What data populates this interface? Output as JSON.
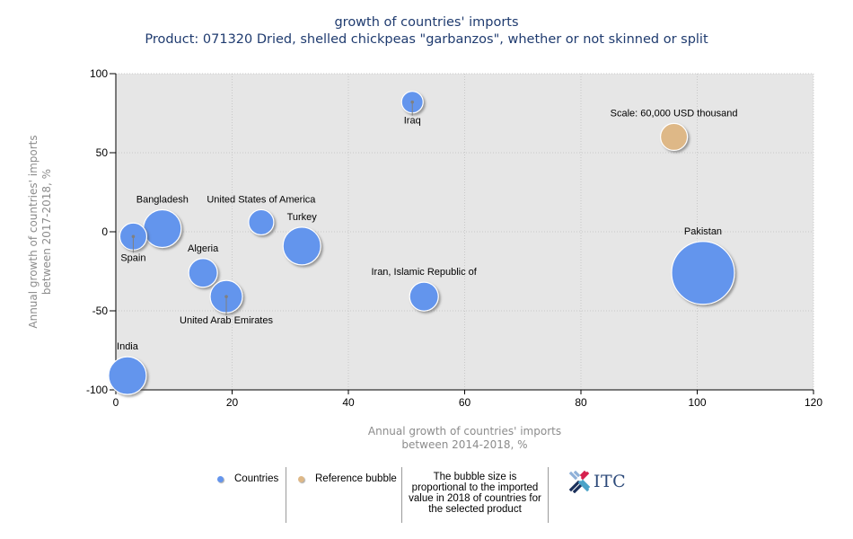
{
  "title": {
    "line1": "growth of countries' imports",
    "line2": "Product: 071320 Dried, shelled chickpeas \"garbanzos\", whether or not skinned or split"
  },
  "chart_data": {
    "type": "scatter",
    "subtype": "bubble",
    "title": "growth of countries' imports",
    "subtitle": "Product: 071320 Dried, shelled chickpeas \"garbanzos\", whether or not skinned or split",
    "xlabel": "Annual growth of countries' imports between 2014-2018, %",
    "xlabel_lines": [
      "Annual growth of countries' imports",
      "between 2014-2018, %"
    ],
    "ylabel": "Annual growth of countries' imports between 2017-2018, %",
    "ylabel_lines": [
      "Annual growth of countries' imports",
      "between 2017-2018, %"
    ],
    "xlim": [
      0,
      120
    ],
    "ylim": [
      -100,
      100
    ],
    "xticks": [
      0,
      20,
      40,
      60,
      80,
      100,
      120
    ],
    "yticks": [
      100,
      50,
      0,
      -50,
      -100
    ],
    "grid": true,
    "size_unit": "USD thousand (imported value 2018, estimated from bubble area)",
    "series": [
      {
        "name": "Countries",
        "color": "#6495ed",
        "points": [
          {
            "label": "Iraq",
            "x": 51,
            "y": 82,
            "size": 38400,
            "label_pos": "below",
            "leader": true
          },
          {
            "label": "Bangladesh",
            "x": 8,
            "y": 2,
            "size": 117600,
            "label_pos": "above",
            "leader": false
          },
          {
            "label": "Spain",
            "x": 3,
            "y": -3,
            "size": 60000,
            "label_pos": "below",
            "leader": true
          },
          {
            "label": "United States of America",
            "x": 25,
            "y": 6,
            "size": 52300,
            "label_pos": "above",
            "leader": false
          },
          {
            "label": "Turkey",
            "x": 32,
            "y": -9,
            "size": 117600,
            "label_pos": "above",
            "leader": false
          },
          {
            "label": "Algeria",
            "x": 15,
            "y": -26,
            "size": 68300,
            "label_pos": "above",
            "leader": false
          },
          {
            "label": "United Arab Emirates",
            "x": 19,
            "y": -41,
            "size": 86400,
            "label_pos": "below",
            "leader": true
          },
          {
            "label": "Iran, Islamic Republic of",
            "x": 53,
            "y": -41,
            "size": 68300,
            "label_pos": "above",
            "leader": false
          },
          {
            "label": "Pakistan",
            "x": 101,
            "y": -26,
            "size": 326700,
            "label_pos": "above",
            "leader": false
          },
          {
            "label": "India",
            "x": 2,
            "y": -91,
            "size": 117600,
            "label_pos": "above",
            "leader": false
          }
        ]
      },
      {
        "name": "Reference bubble",
        "color": "#deb887",
        "points": [
          {
            "label": "Scale: 60,000 USD thousand",
            "x": 96,
            "y": 60,
            "size": 60000,
            "label_pos": "above",
            "leader": false
          }
        ]
      }
    ],
    "legend": {
      "placement": "bottom",
      "items": [
        "Countries",
        "Reference bubble"
      ]
    },
    "reference_size": 60000
  },
  "legend": {
    "countries": "Countries",
    "reference": "Reference bubble",
    "note": "The bubble size is proportional to the imported value in 2018 of countries for the selected product",
    "countries_color": "#6495ed",
    "reference_color": "#deb887"
  },
  "logo": {
    "text": "ITC",
    "name": "itc-logo"
  },
  "colors": {
    "plot_background": "#e6e6e6",
    "title": "#1f3b6f",
    "axis_label": "#8c8c8c"
  }
}
